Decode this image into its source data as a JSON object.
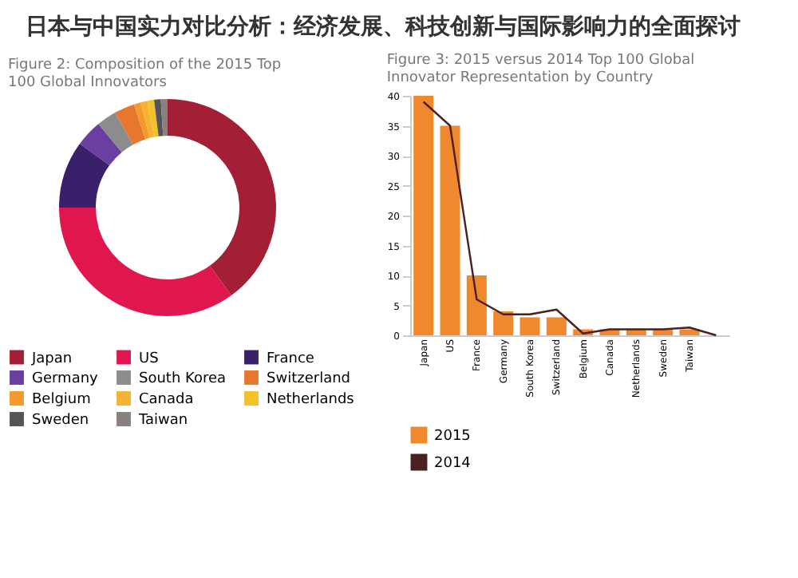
{
  "chart_data": [
    {
      "type": "other",
      "title": "日本与中国实力对比分析：经济发展、科技创新与国际影响力的全面探讨"
    },
    {
      "type": "donut",
      "title": "Figure 2: Composition of the 2015 Top 100 Global Innovators",
      "legend": "bottom",
      "categories": [
        "Japan",
        "US",
        "France",
        "Germany",
        "South Korea",
        "Switzerland",
        "Belgium",
        "Canada",
        "Netherlands",
        "Sweden",
        "Taiwan"
      ],
      "values": [
        40,
        35,
        10,
        4,
        3,
        3,
        1,
        1,
        1,
        1,
        1
      ],
      "colors": [
        "#a31f35",
        "#e0164f",
        "#3a1f6b",
        "#6b3fa0",
        "#8c8c8c",
        "#e8772e",
        "#f39a2a",
        "#f5b335",
        "#f3c12a",
        "#555555",
        "#8a8080"
      ]
    },
    {
      "type": "bar",
      "title": "Figure 3: 2015 versus 2014 Top 100 Global Innovator Representation by Country",
      "legend": "bottom left",
      "categories": [
        "Japan",
        "US",
        "France",
        "Germany",
        "South Korea",
        "Switzerland",
        "Belgium",
        "Canada",
        "Netherlands",
        "Sweden",
        "Taiwan",
        null
      ],
      "ylim": [
        0,
        40
      ],
      "yticks": [
        0,
        5,
        10,
        15,
        20,
        25,
        30,
        35,
        40
      ],
      "series": [
        {
          "name": "2015",
          "color": "#f0892e",
          "values": [
            40,
            35,
            10,
            4,
            3,
            3,
            1,
            1,
            1,
            1,
            1,
            0
          ]
        },
        {
          "name": "2014",
          "type": "line",
          "color": "#4a2020",
          "values": [
            39,
            35,
            6,
            3.5,
            3.5,
            4.3,
            0.3,
            1,
            1,
            1,
            1.3,
            0
          ]
        }
      ]
    }
  ]
}
